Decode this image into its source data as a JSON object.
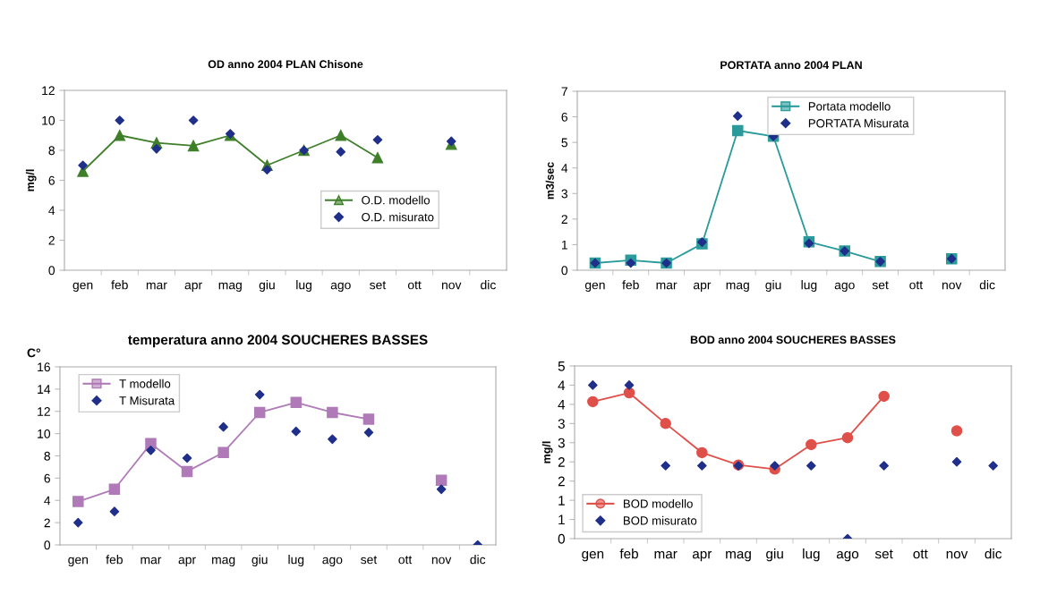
{
  "chart_data": [
    {
      "type": "line",
      "title": "OD anno 2004 PLAN Chisone",
      "ylabel": "mg/l",
      "categories": [
        "gen",
        "feb",
        "mar",
        "apr",
        "mag",
        "giu",
        "lug",
        "ago",
        "set",
        "ott",
        "nov",
        "dic"
      ],
      "ylim": [
        0,
        12
      ],
      "yticks": [
        0,
        2,
        4,
        6,
        8,
        10,
        12
      ],
      "legend": "lower right",
      "grid": false,
      "series": [
        {
          "name": "O.D. modello",
          "marker": "triangle",
          "color": "#3f7f2a",
          "values": [
            6.6,
            9.0,
            8.5,
            8.3,
            9.0,
            7.0,
            8.0,
            9.0,
            7.5,
            null,
            8.4,
            null
          ]
        },
        {
          "name": "O.D. misurato",
          "type": "scatter",
          "marker": "diamond",
          "color": "#1f2f8a",
          "values": [
            7.0,
            10.0,
            8.1,
            10.0,
            9.1,
            6.7,
            8.0,
            7.9,
            8.7,
            null,
            8.6,
            null
          ]
        }
      ]
    },
    {
      "type": "line",
      "title": "PORTATA anno 2004 PLAN",
      "ylabel": "m3/sec",
      "categories": [
        "gen",
        "feb",
        "mar",
        "apr",
        "mag",
        "giu",
        "lug",
        "ago",
        "set",
        "ott",
        "nov",
        "dic"
      ],
      "ylim": [
        0,
        7
      ],
      "yticks": [
        0,
        1,
        2,
        3,
        4,
        5,
        6,
        7
      ],
      "legend": "upper right",
      "grid": false,
      "series": [
        {
          "name": "Portata modello",
          "marker": "square",
          "color": "#2a9a9a",
          "values": [
            0.28,
            0.39,
            0.28,
            1.03,
            5.46,
            5.24,
            1.11,
            0.75,
            0.34,
            null,
            0.45,
            null
          ]
        },
        {
          "name": "PORTATA Misurata",
          "type": "scatter",
          "marker": "diamond",
          "color": "#1f2f8a",
          "values": [
            0.28,
            0.28,
            0.28,
            1.1,
            6.03,
            5.24,
            1.05,
            0.75,
            0.34,
            null,
            0.45,
            null
          ]
        }
      ]
    },
    {
      "type": "line",
      "title": "temperatura anno 2004 SOUCHERES BASSES",
      "ylabel": "C°",
      "categories": [
        "gen",
        "feb",
        "mar",
        "apr",
        "mag",
        "giu",
        "lug",
        "ago",
        "set",
        "ott",
        "nov",
        "dic"
      ],
      "ylim": [
        0,
        16
      ],
      "yticks": [
        0,
        2,
        4,
        6,
        8,
        10,
        12,
        14,
        16
      ],
      "legend": "upper left",
      "grid": false,
      "series": [
        {
          "name": "T modello",
          "marker": "square",
          "color": "#b07ab8",
          "values": [
            3.9,
            5.0,
            9.1,
            6.6,
            8.3,
            11.9,
            12.8,
            11.9,
            11.3,
            null,
            5.8,
            null
          ]
        },
        {
          "name": "T Misurata",
          "type": "scatter",
          "marker": "diamond",
          "color": "#1f2f8a",
          "values": [
            2.0,
            3.0,
            8.5,
            7.8,
            10.6,
            13.5,
            10.2,
            9.5,
            10.1,
            null,
            5.0,
            0
          ]
        }
      ]
    },
    {
      "type": "line",
      "title": "BOD anno 2004 SOUCHERES BASSES",
      "ylabel": "mg/l",
      "categories": [
        "gen",
        "feb",
        "mar",
        "apr",
        "mag",
        "giu",
        "lug",
        "ago",
        "set",
        "ott",
        "nov",
        "dic"
      ],
      "ylim": [
        0,
        4.5
      ],
      "yticks": [
        0,
        {
          "value": 0.5,
          "label": "1"
        },
        1,
        {
          "value": 1.5,
          "label": "2"
        },
        2,
        {
          "value": 2.5,
          "label": "3"
        },
        3,
        {
          "value": 3.5,
          "label": "4"
        },
        4,
        {
          "value": 4.5,
          "label": "5"
        }
      ],
      "legend": "lower left",
      "grid": false,
      "series": [
        {
          "name": "BOD modello",
          "marker": "circle",
          "color": "#e0504a",
          "values": [
            3.57,
            3.8,
            3.0,
            2.24,
            1.92,
            1.81,
            2.45,
            2.63,
            3.71,
            null,
            2.81,
            null
          ]
        },
        {
          "name": "BOD misurato",
          "type": "scatter",
          "marker": "diamond",
          "color": "#1f2f8a",
          "values": [
            4.0,
            4.0,
            1.9,
            1.9,
            1.9,
            1.9,
            1.9,
            0,
            1.9,
            null,
            2.0,
            1.9
          ]
        }
      ]
    }
  ]
}
